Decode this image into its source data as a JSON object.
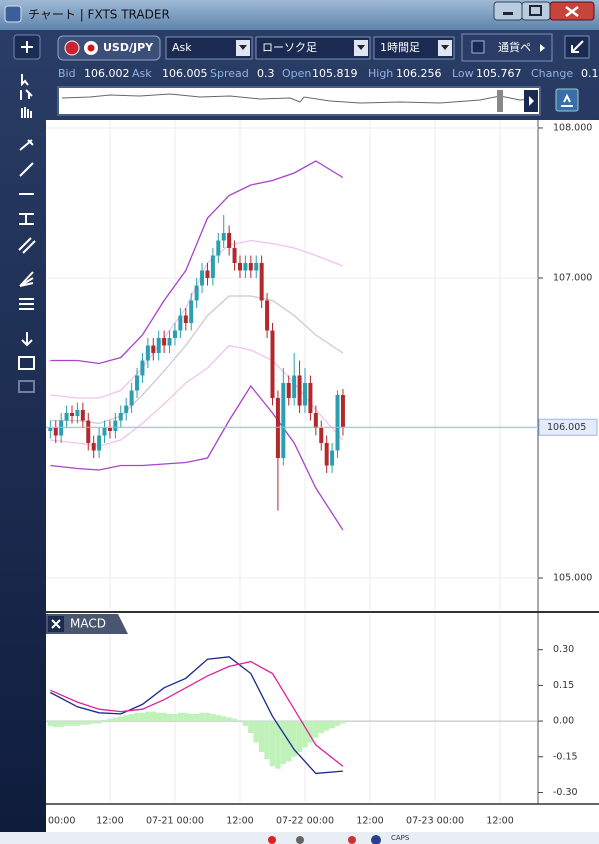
{
  "window": {
    "title": "チャート | FXTS TRADER"
  },
  "toolbar": {
    "pair": "USD/JPY",
    "price_side": "Ask",
    "chart_style": "ローソク足",
    "timeframe": "1時間足",
    "pair_select": "通貨ペ"
  },
  "quote": [
    {
      "label": "Bid",
      "value": 106.002
    },
    {
      "label": "Ask",
      "value": 106.005
    },
    {
      "label": "Spread",
      "value": 0.3
    },
    {
      "label": "Open",
      "value": 105.819
    },
    {
      "label": "High",
      "value": 106.256
    },
    {
      "label": "Low",
      "value": 105.767
    },
    {
      "label": "Change",
      "value": 0.1
    }
  ],
  "taskbar": {
    "caps": "CAPS"
  },
  "chart_data": [
    {
      "type": "candlestick",
      "up_color": "#2b9fb0",
      "down_color": "#b3282d",
      "xlim": [
        0.2,
        91.0
      ],
      "ylim": [
        104.787,
        108.053
      ],
      "yticks": [
        {
          "value": 105,
          "label": "105.000"
        },
        {
          "value": 106,
          "label": "106.000"
        },
        {
          "value": 107,
          "label": "107.000"
        },
        {
          "value": 108,
          "label": "108.000"
        }
      ],
      "grid": true,
      "current_price": 106.005,
      "candles": {
        "x": [
          1,
          2,
          3,
          4,
          5,
          6,
          7,
          8,
          9,
          10,
          11,
          12,
          13,
          14,
          15,
          16,
          17,
          18,
          19,
          20,
          21,
          22,
          23,
          24,
          25,
          26,
          27,
          28,
          29,
          30,
          31,
          32,
          33,
          34,
          35,
          36,
          37,
          38,
          39,
          40,
          41,
          42,
          43,
          44,
          45,
          46,
          47,
          48,
          49,
          50,
          51,
          52,
          53,
          54,
          55
        ],
        "open": [
          105.98,
          106.0,
          105.95,
          106.05,
          106.1,
          106.08,
          106.12,
          106.05,
          105.9,
          105.85,
          105.95,
          106.0,
          105.98,
          106.05,
          106.1,
          106.15,
          106.25,
          106.35,
          106.45,
          106.55,
          106.5,
          106.6,
          106.55,
          106.6,
          106.65,
          106.75,
          106.7,
          106.85,
          106.95,
          107.05,
          107.0,
          107.15,
          107.25,
          107.3,
          107.2,
          107.1,
          107.05,
          107.1,
          107.05,
          107.1,
          106.85,
          106.65,
          106.2,
          105.8,
          106.3,
          106.2,
          106.35,
          106.15,
          106.3,
          106.1,
          106.0,
          105.9,
          105.75,
          105.85,
          106.22
        ],
        "high": [
          106.05,
          106.05,
          106.1,
          106.15,
          106.15,
          106.17,
          106.17,
          106.1,
          105.95,
          106.0,
          106.05,
          106.05,
          106.1,
          106.15,
          106.2,
          106.3,
          106.4,
          106.5,
          106.6,
          106.6,
          106.65,
          106.65,
          106.65,
          106.7,
          106.8,
          106.8,
          106.9,
          107.0,
          107.1,
          107.1,
          107.2,
          107.3,
          107.42,
          107.35,
          107.25,
          107.15,
          107.15,
          107.15,
          107.15,
          107.15,
          106.9,
          106.7,
          106.25,
          106.4,
          106.35,
          106.5,
          106.45,
          106.4,
          106.35,
          106.15,
          106.05,
          105.95,
          105.9,
          106.25,
          106.26
        ],
        "low": [
          105.93,
          105.9,
          105.9,
          106.0,
          106.03,
          106.03,
          106.0,
          105.85,
          105.8,
          105.8,
          105.9,
          105.93,
          105.93,
          106.0,
          106.05,
          106.1,
          106.2,
          106.3,
          106.4,
          106.45,
          106.45,
          106.5,
          106.5,
          106.55,
          106.6,
          106.65,
          106.65,
          106.8,
          106.9,
          106.95,
          106.95,
          107.1,
          107.2,
          107.15,
          107.05,
          107.0,
          107.0,
          107.0,
          107.0,
          106.8,
          106.6,
          106.15,
          105.45,
          105.75,
          106.15,
          106.15,
          106.1,
          106.1,
          106.05,
          105.95,
          105.85,
          105.7,
          105.7,
          105.8,
          105.95
        ],
        "close": [
          106.0,
          105.95,
          106.05,
          106.1,
          106.08,
          106.12,
          106.05,
          105.9,
          105.85,
          105.95,
          106.0,
          105.98,
          106.05,
          106.1,
          106.15,
          106.25,
          106.35,
          106.45,
          106.55,
          106.5,
          106.6,
          106.55,
          106.6,
          106.65,
          106.75,
          106.7,
          106.85,
          106.95,
          107.05,
          107.0,
          107.15,
          107.25,
          107.3,
          107.2,
          107.1,
          107.05,
          107.1,
          107.05,
          107.1,
          106.85,
          106.65,
          106.2,
          105.8,
          106.3,
          106.2,
          106.35,
          106.15,
          106.3,
          106.1,
          106.0,
          105.9,
          105.75,
          105.85,
          106.22,
          106.005
        ]
      },
      "series": [
        {
          "color": "#a844c8",
          "x": [
            1,
            6,
            10,
            14,
            18,
            22,
            26,
            30,
            34,
            38,
            42,
            46,
            50,
            55
          ],
          "values": [
            106.45,
            106.45,
            106.43,
            106.47,
            106.62,
            106.85,
            107.05,
            107.4,
            107.55,
            107.62,
            107.65,
            107.7,
            107.78,
            107.67
          ]
        },
        {
          "color": "#f0c4ee",
          "x": [
            1,
            6,
            10,
            14,
            18,
            22,
            26,
            30,
            34,
            38,
            42,
            46,
            50,
            55
          ],
          "values": [
            106.22,
            106.2,
            106.2,
            106.25,
            106.4,
            106.6,
            106.8,
            107.1,
            107.22,
            107.25,
            107.23,
            107.2,
            107.15,
            107.08
          ]
        },
        {
          "color": "#cfc6d8",
          "x": [
            1,
            6,
            10,
            14,
            18,
            22,
            26,
            30,
            34,
            38,
            42,
            46,
            50,
            55
          ],
          "values": [
            106.05,
            106.05,
            106.03,
            106.08,
            106.22,
            106.38,
            106.55,
            106.75,
            106.88,
            106.88,
            106.85,
            106.75,
            106.62,
            106.5
          ]
        },
        {
          "color": "#f0c4ee",
          "x": [
            1,
            6,
            10,
            14,
            18,
            22,
            26,
            30,
            34,
            38,
            42,
            46,
            50,
            55
          ],
          "values": [
            105.92,
            105.9,
            105.88,
            105.92,
            106.03,
            106.16,
            106.3,
            106.4,
            106.55,
            106.52,
            106.45,
            106.3,
            106.12,
            105.92
          ]
        },
        {
          "color": "#a844c8",
          "x": [
            1,
            6,
            10,
            14,
            18,
            22,
            26,
            30,
            34,
            38,
            42,
            46,
            50,
            55
          ],
          "values": [
            105.75,
            105.73,
            105.72,
            105.75,
            105.75,
            105.76,
            105.77,
            105.8,
            106.05,
            106.28,
            106.1,
            105.9,
            105.6,
            105.32
          ]
        }
      ]
    },
    {
      "type": "macd",
      "title": "MACD",
      "xlim": [
        0.2,
        91.0
      ],
      "ylim": [
        -0.34,
        0.45
      ],
      "yticks": [
        {
          "value": 0.3,
          "label": "0.30"
        },
        {
          "value": 0.15,
          "label": "0.15"
        },
        {
          "value": 0,
          "label": "0.00"
        },
        {
          "value": -0.15,
          "label": "-0.15"
        },
        {
          "value": -0.3,
          "label": "-0.30"
        }
      ],
      "xticks": [
        {
          "value": 0,
          "label": "00:00"
        },
        {
          "value": 12,
          "label": "12:00"
        },
        {
          "value": 24,
          "label": "07-21 00:00"
        },
        {
          "value": 36,
          "label": "12:00"
        },
        {
          "value": 48,
          "label": "07-22 00:00"
        },
        {
          "value": 60,
          "label": "12:00"
        },
        {
          "value": 72,
          "label": "07-23 00:00"
        },
        {
          "value": 84,
          "label": "12:00"
        }
      ],
      "histogram": {
        "color": "#bff2b8",
        "x": [
          1,
          2,
          3,
          4,
          5,
          6,
          7,
          8,
          9,
          10,
          11,
          12,
          13,
          14,
          15,
          16,
          17,
          18,
          19,
          20,
          21,
          22,
          23,
          24,
          25,
          26,
          27,
          28,
          29,
          30,
          31,
          32,
          33,
          34,
          35,
          36,
          37,
          38,
          39,
          40,
          41,
          42,
          43,
          44,
          45,
          46,
          47,
          48,
          49,
          50,
          51,
          52,
          53,
          54,
          55
        ],
        "values": [
          -0.02,
          -0.025,
          -0.025,
          -0.02,
          -0.02,
          -0.02,
          -0.015,
          -0.015,
          -0.01,
          -0.01,
          0.005,
          0.01,
          0.015,
          0.02,
          0.025,
          0.03,
          0.035,
          0.035,
          0.04,
          0.04,
          0.035,
          0.035,
          0.03,
          0.03,
          0.035,
          0.035,
          0.03,
          0.03,
          0.035,
          0.035,
          0.03,
          0.025,
          0.02,
          0.015,
          0.01,
          0.0,
          -0.02,
          -0.05,
          -0.09,
          -0.13,
          -0.16,
          -0.19,
          -0.2,
          -0.18,
          -0.17,
          -0.15,
          -0.13,
          -0.11,
          -0.09,
          -0.07,
          -0.05,
          -0.04,
          -0.03,
          -0.02,
          -0.01
        ]
      },
      "series": [
        {
          "color": "#1a2a8c",
          "x": [
            1,
            6,
            10,
            14,
            18,
            22,
            26,
            30,
            34,
            38,
            42,
            46,
            50,
            55
          ],
          "values": [
            0.12,
            0.06,
            0.035,
            0.03,
            0.07,
            0.14,
            0.18,
            0.26,
            0.27,
            0.2,
            0.02,
            -0.12,
            -0.22,
            -0.21
          ]
        },
        {
          "color": "#d8249e",
          "x": [
            1,
            6,
            10,
            14,
            18,
            22,
            26,
            30,
            34,
            38,
            42,
            46,
            50,
            55
          ],
          "values": [
            0.13,
            0.08,
            0.05,
            0.04,
            0.05,
            0.09,
            0.14,
            0.19,
            0.23,
            0.25,
            0.2,
            0.05,
            -0.1,
            -0.19
          ]
        }
      ]
    }
  ]
}
